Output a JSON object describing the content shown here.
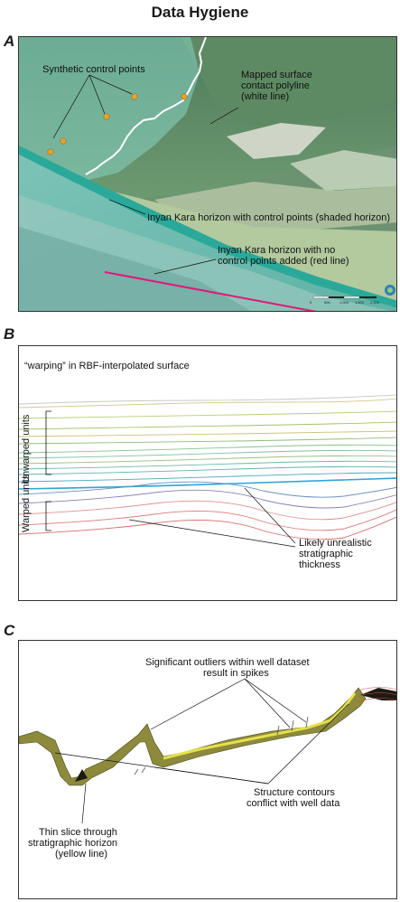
{
  "title": "Data Hygiene",
  "panels": {
    "a": {
      "letter": "A",
      "labels": {
        "synthetic": "Synthetic control points",
        "mapped_1": "Mapped surface",
        "mapped_2": "contact polyline",
        "mapped_3": "(white line)",
        "shaded": "Inyan Kara horizon with control points (shaded horizon)",
        "red_1": "Inyan Kara horizon with no",
        "red_2": "control points added (red line)"
      },
      "scale": {
        "ticks": [
          "0",
          "500",
          "1,000",
          "1,500",
          "2,000"
        ]
      }
    },
    "b": {
      "letter": "B",
      "labels": {
        "warping": "“warping” in RBF-interpolated surface",
        "unwarped": "Unwarped units",
        "warped": "Warped units",
        "likely_1": "Likely unrealistic",
        "likely_2": "stratigraphic",
        "likely_3": "thickness"
      }
    },
    "c": {
      "letter": "C",
      "labels": {
        "outliers_1": "Significant outliers within well dataset",
        "outliers_2": "result in spikes",
        "contours_1": "Structure contours",
        "contours_2": "conflict with well data",
        "slice_1": "Thin slice through",
        "slice_2": "stratigraphic horizon",
        "slice_3": "(yellow line)"
      }
    }
  },
  "colors": {
    "control_point": "#e8a32a",
    "red_line": "#e0197a",
    "horizon_teal": "#2aa99b",
    "yellow_line": "#e5e04a"
  }
}
